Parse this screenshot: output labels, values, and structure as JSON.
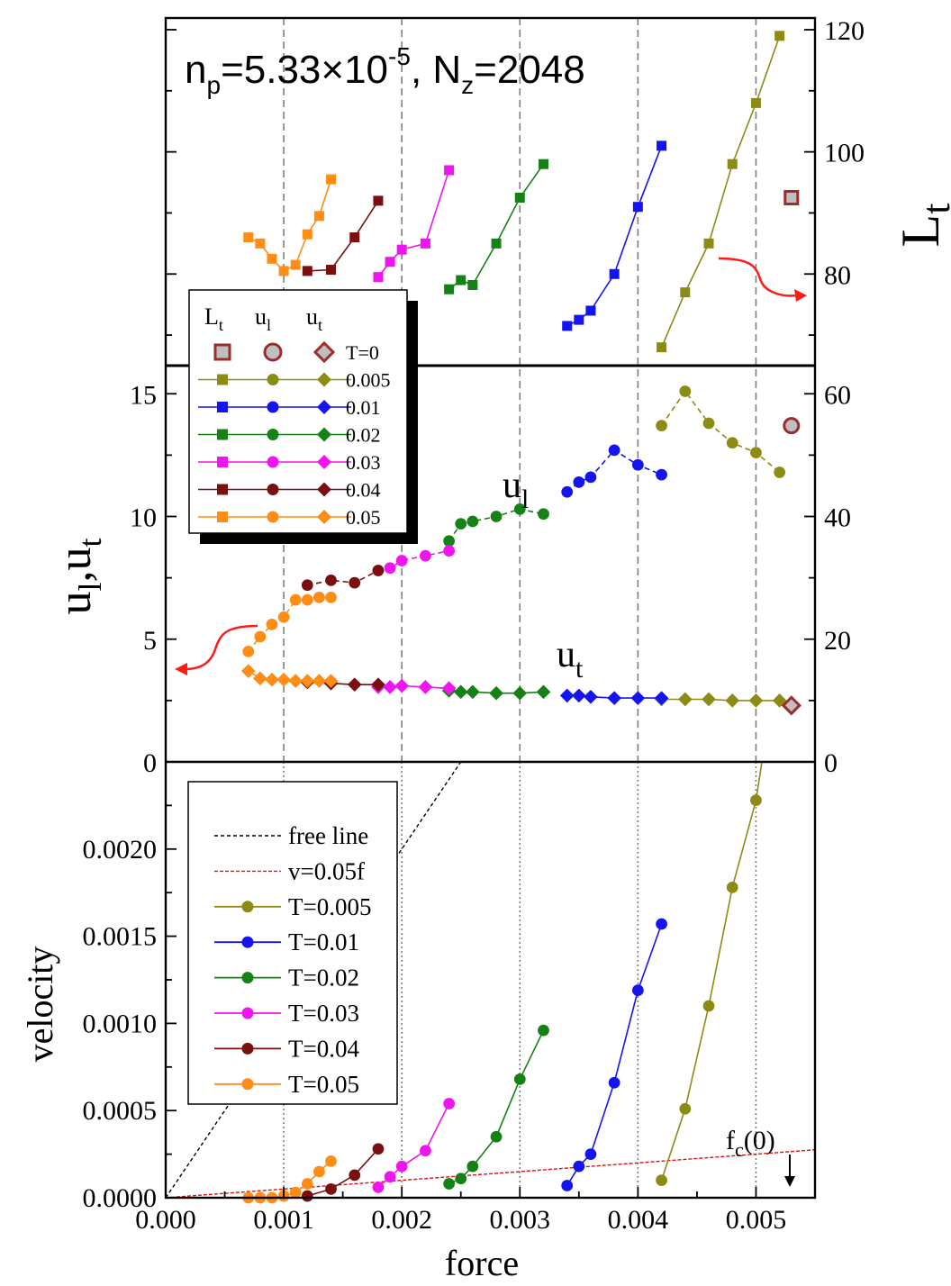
{
  "chart_data": {
    "type": "line",
    "colors": {
      "T=0": "#9b2d2d",
      "T=0.005": "#8c8c14",
      "T=0.01": "#1414f0",
      "T=0.02": "#148214",
      "T=0.03": "#f014f0",
      "T=0.04": "#7a0f0f",
      "T=0.05": "#ff8c14"
    },
    "xlabel": "force",
    "x_ticks": [
      "0.000",
      "0.001",
      "0.002",
      "0.003",
      "0.004",
      "0.005"
    ],
    "xlim": [
      0,
      0.0055
    ],
    "guides_x": [
      0.001,
      0.002,
      0.003,
      0.004,
      0.005
    ],
    "panels": {
      "top": {
        "title_prefix": "n",
        "title_sub": "p",
        "title_eq": "=5.33×10",
        "title_sup": "-5",
        "title_suffix": ", N",
        "title_sub2": "z",
        "title_end": "=2048",
        "right_ylabel": "L",
        "right_ylabel_sub": "t",
        "right_ylim": [
          65,
          120
        ],
        "right_ticks": [
          "80",
          "100",
          "120"
        ],
        "series": [
          {
            "name": "T=0.005",
            "x": [
              0.0042,
              0.0044,
              0.0046,
              0.0048,
              0.005,
              0.0052
            ],
            "y": [
              68,
              77,
              85,
              98,
              108,
              119
            ]
          },
          {
            "name": "T=0.01",
            "x": [
              0.0034,
              0.0035,
              0.0036,
              0.0038,
              0.004,
              0.0042
            ],
            "y": [
              71.5,
              72.5,
              74,
              80,
              91,
              101
            ]
          },
          {
            "name": "T=0.02",
            "x": [
              0.0024,
              0.0025,
              0.0026,
              0.0028,
              0.003,
              0.0032
            ],
            "y": [
              77.5,
              79,
              78.2,
              85,
              92.5,
              98
            ]
          },
          {
            "name": "T=0.03",
            "x": [
              0.0018,
              0.0019,
              0.002,
              0.0022,
              0.0024
            ],
            "y": [
              79.5,
              82,
              84,
              85,
              97
            ]
          },
          {
            "name": "T=0.04",
            "x": [
              0.0012,
              0.0014,
              0.0016,
              0.0018
            ],
            "y": [
              80.5,
              80.7,
              86,
              92
            ]
          },
          {
            "name": "T=0.05",
            "x": [
              0.0007,
              0.0008,
              0.0009,
              0.001,
              0.0011,
              0.0012,
              0.0013,
              0.0014
            ],
            "y": [
              86,
              85,
              82.5,
              80.5,
              81.5,
              86.5,
              89.5,
              95.5
            ]
          },
          {
            "name": "T=0",
            "x": [
              0.0053
            ],
            "y": [
              92.5
            ]
          }
        ]
      },
      "middle": {
        "left_ylabel": "u",
        "left_ylabel_sub1": "l",
        "left_ylabel_mid": ",u",
        "left_ylabel_sub2": "t",
        "left_ylim": [
          0,
          16
        ],
        "left_ticks": [
          "0",
          "5",
          "10",
          "15"
        ],
        "right_ylim": [
          0,
          64
        ],
        "right_ticks": [
          "0",
          "20",
          "40",
          "60"
        ],
        "ul_label": "u",
        "ul_label_sub": "l",
        "ut_label": "u",
        "ut_label_sub": "t",
        "ul_series": [
          {
            "name": "T=0.005",
            "x": [
              0.0042,
              0.0044,
              0.0046,
              0.0048,
              0.005,
              0.0052
            ],
            "y": [
              13.7,
              15.1,
              13.8,
              13.0,
              12.6,
              11.8
            ]
          },
          {
            "name": "T=0.01",
            "x": [
              0.0034,
              0.0035,
              0.0036,
              0.0038,
              0.004,
              0.0042
            ],
            "y": [
              11.0,
              11.4,
              11.6,
              12.7,
              12.1,
              11.7
            ]
          },
          {
            "name": "T=0.02",
            "x": [
              0.0024,
              0.0025,
              0.0026,
              0.0028,
              0.003,
              0.0032
            ],
            "y": [
              9.0,
              9.7,
              9.8,
              10.0,
              10.3,
              10.1
            ]
          },
          {
            "name": "T=0.03",
            "x": [
              0.0018,
              0.0019,
              0.002,
              0.0022,
              0.0024
            ],
            "y": [
              7.8,
              7.9,
              8.2,
              8.4,
              8.6
            ]
          },
          {
            "name": "T=0.04",
            "x": [
              0.0012,
              0.0014,
              0.0016,
              0.0018
            ],
            "y": [
              7.2,
              7.4,
              7.3,
              7.8
            ]
          },
          {
            "name": "T=0.05",
            "x": [
              0.0007,
              0.0008,
              0.0009,
              0.001,
              0.0011,
              0.0012,
              0.0013,
              0.0014
            ],
            "y": [
              4.5,
              5.1,
              5.6,
              5.9,
              6.6,
              6.6,
              6.7,
              6.7
            ]
          },
          {
            "name": "T=0",
            "x": [
              0.0053
            ],
            "y": [
              13.7
            ]
          }
        ],
        "ut_series": [
          {
            "name": "T=0.005",
            "x": [
              0.0042,
              0.0044,
              0.0046,
              0.0048,
              0.005,
              0.0052
            ],
            "y": [
              2.55,
              2.55,
              2.55,
              2.5,
              2.5,
              2.5
            ]
          },
          {
            "name": "T=0.01",
            "x": [
              0.0034,
              0.0035,
              0.0036,
              0.0038,
              0.004,
              0.0042
            ],
            "y": [
              2.7,
              2.7,
              2.65,
              2.6,
              2.6,
              2.6
            ]
          },
          {
            "name": "T=0.02",
            "x": [
              0.0024,
              0.0025,
              0.0026,
              0.0028,
              0.003,
              0.0032
            ],
            "y": [
              2.9,
              2.85,
              2.85,
              2.8,
              2.8,
              2.85
            ]
          },
          {
            "name": "T=0.03",
            "x": [
              0.0018,
              0.0019,
              0.002,
              0.0022,
              0.0024
            ],
            "y": [
              3.05,
              3.05,
              3.1,
              3.05,
              3.0
            ]
          },
          {
            "name": "T=0.04",
            "x": [
              0.0012,
              0.0014,
              0.0016,
              0.0018
            ],
            "y": [
              3.25,
              3.2,
              3.15,
              3.15
            ]
          },
          {
            "name": "T=0.05",
            "x": [
              0.0007,
              0.0008,
              0.0009,
              0.001,
              0.0011,
              0.0012,
              0.0013,
              0.0014
            ],
            "y": [
              3.7,
              3.4,
              3.35,
              3.35,
              3.3,
              3.3,
              3.3,
              3.3
            ]
          },
          {
            "name": "T=0",
            "x": [
              0.0053
            ],
            "y": [
              2.3
            ]
          }
        ],
        "legend": {
          "headers": [
            "L",
            "u",
            "u"
          ],
          "header_subs": [
            "t",
            "l",
            "t"
          ],
          "rows": [
            "T=0",
            "0.005",
            "0.01",
            "0.02",
            "0.03",
            "0.04",
            "0.05"
          ]
        }
      },
      "bottom": {
        "ylabel": "velocity",
        "ylim": [
          0,
          0.0025
        ],
        "y_ticks": [
          "0.0000",
          "0.0005",
          "0.0010",
          "0.0015",
          "0.0020"
        ],
        "fc_label": "f",
        "fc_sub": "c",
        "fc_arg": "(0)",
        "legend": [
          "free line",
          "v=0.05f",
          "T=0.005",
          "T=0.01",
          "T=0.02",
          "T=0.03",
          "T=0.04",
          "T=0.05"
        ],
        "free_line": {
          "x": [
            0,
            0.0025
          ],
          "y": [
            0,
            0.0025
          ]
        },
        "ref_line": {
          "x": [
            0,
            0.0055
          ],
          "y": [
            0,
            0.000275
          ]
        },
        "series": [
          {
            "name": "T=0.005",
            "x": [
              0.0042,
              0.0044,
              0.0046,
              0.0048,
              0.005,
              0.00505
            ],
            "y": [
              0.0001,
              0.00051,
              0.0011,
              0.00178,
              0.00228,
              0.0025
            ]
          },
          {
            "name": "T=0.01",
            "x": [
              0.0034,
              0.0035,
              0.0036,
              0.0038,
              0.004,
              0.0042
            ],
            "y": [
              7e-05,
              0.00018,
              0.00025,
              0.00066,
              0.00119,
              0.00157
            ]
          },
          {
            "name": "T=0.02",
            "x": [
              0.0024,
              0.0025,
              0.0026,
              0.0028,
              0.003,
              0.0032
            ],
            "y": [
              8e-05,
              0.00011,
              0.00018,
              0.00035,
              0.00068,
              0.00096
            ]
          },
          {
            "name": "T=0.03",
            "x": [
              0.0018,
              0.0019,
              0.002,
              0.0022,
              0.0024
            ],
            "y": [
              6e-05,
              0.00012,
              0.00018,
              0.00027,
              0.00054
            ]
          },
          {
            "name": "T=0.04",
            "x": [
              0.0012,
              0.0014,
              0.0016,
              0.0018
            ],
            "y": [
              1e-05,
              5e-05,
              0.00013,
              0.00028
            ]
          },
          {
            "name": "T=0.05",
            "x": [
              0.0007,
              0.0008,
              0.0009,
              0.001,
              0.0011,
              0.0012,
              0.0013,
              0.0014
            ],
            "y": [
              0.0,
              0.0,
              0.0,
              1e-05,
              3e-05,
              8e-05,
              0.00015,
              0.00021
            ]
          }
        ]
      }
    }
  }
}
